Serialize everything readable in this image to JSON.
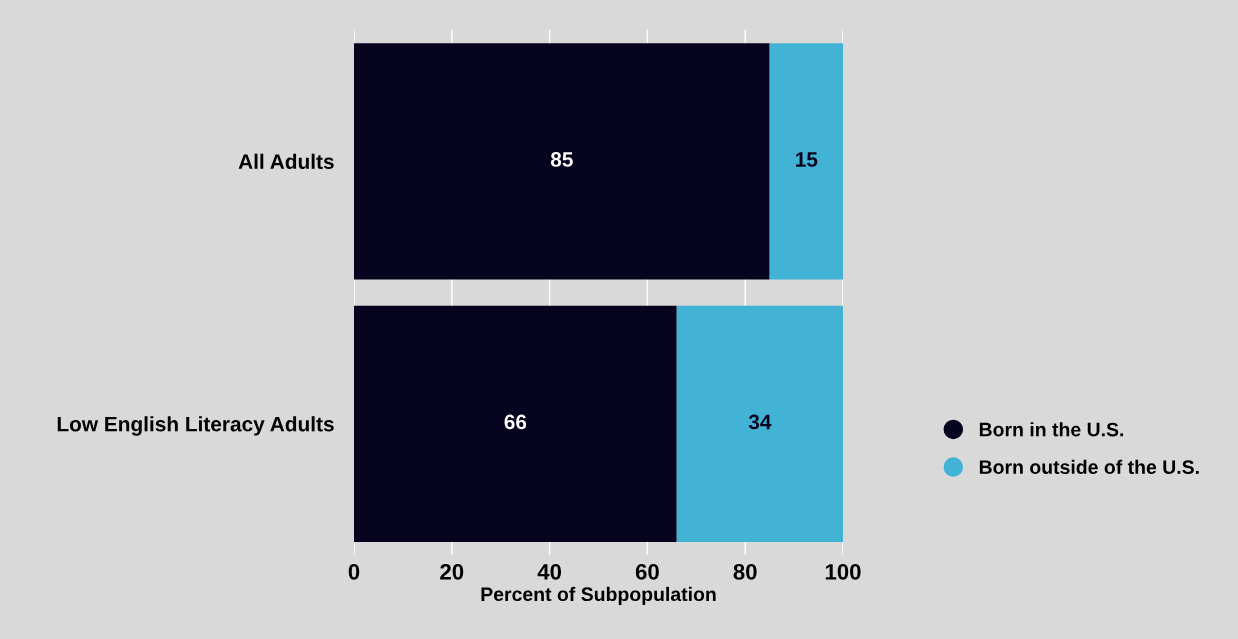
{
  "chart_data": {
    "type": "bar",
    "orientation": "horizontal",
    "stacked": true,
    "xlabel": "Percent of Subpopulation",
    "categories": [
      "All Adults",
      "Low English Literacy Adults"
    ],
    "series": [
      {
        "name": "Born in the U.S.",
        "color": "#06041f",
        "values": [
          85,
          66
        ]
      },
      {
        "name": "Born outside of the U.S.",
        "color": "#42b3d5",
        "values": [
          15,
          34
        ]
      }
    ],
    "xlim": [
      0,
      100
    ],
    "xticks": [
      0,
      20,
      40,
      60,
      80,
      100
    ],
    "grid": "x",
    "legend": "right",
    "data_labels": true
  }
}
